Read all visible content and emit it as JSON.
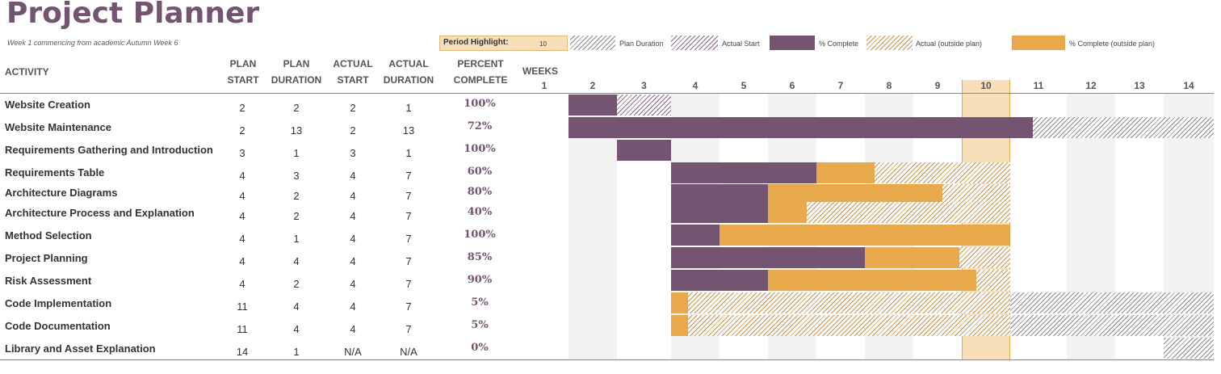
{
  "title": "Project Planner",
  "subtitle": "Week 1 commencing from academic Autumn Week 6",
  "period_highlight": {
    "label": "Period Highlight:",
    "value": "10"
  },
  "legend": [
    {
      "label": "Plan Duration",
      "style": "hatch-gray"
    },
    {
      "label": "Actual Start",
      "style": "hatch-purple"
    },
    {
      "label": "% Complete",
      "style": "solid-purple"
    },
    {
      "label": "Actual (outside plan)",
      "style": "hatch-orange"
    },
    {
      "label": "% Complete (outside plan)",
      "style": "solid-orange"
    }
  ],
  "headers": {
    "activity": "ACTIVITY",
    "plan_start": [
      "PLAN",
      "START"
    ],
    "plan_duration": [
      "PLAN",
      "DURATION"
    ],
    "actual_start": [
      "ACTUAL",
      "START"
    ],
    "actual_duration": [
      "ACTUAL",
      "DURATION"
    ],
    "percent_complete": [
      "PERCENT",
      "COMPLETE"
    ],
    "weeks": "WEEKS"
  },
  "weeks": [
    "1",
    "2",
    "3",
    "4",
    "5",
    "6",
    "7",
    "8",
    "9",
    "10",
    "11",
    "12",
    "13",
    "14"
  ],
  "highlight_week": 10,
  "colors": {
    "purple": "#735572",
    "orange": "#e8a94d",
    "highlight": "#f9deba"
  },
  "rows": [
    {
      "activity": "Website Creation",
      "plan_start": "2",
      "plan_duration": "2",
      "actual_start": "2",
      "actual_duration": "1",
      "percent": "100%",
      "pct_value": 100,
      "outside_plan": false
    },
    {
      "activity": "Website Maintenance",
      "plan_start": "2",
      "plan_duration": "13",
      "actual_start": "2",
      "actual_duration": "13",
      "percent": "72%",
      "pct_value": 72,
      "outside_plan": false
    },
    {
      "activity": "Requirements Gathering and Introduction",
      "plan_start": "3",
      "plan_duration": "1",
      "actual_start": "3",
      "actual_duration": "1",
      "percent": "100%",
      "pct_value": 100,
      "outside_plan": false
    },
    {
      "activity": "Requirements Table",
      "plan_start": "4",
      "plan_duration": "3",
      "actual_start": "4",
      "actual_duration": "7",
      "percent": "60%",
      "pct_value": 60,
      "outside_plan": false
    },
    {
      "activity": "Architecture Diagrams",
      "plan_start": "4",
      "plan_duration": "2",
      "actual_start": "4",
      "actual_duration": "7",
      "percent": "80%",
      "pct_value": 80,
      "outside_plan": false
    },
    {
      "activity": "Architecture Process and Explanation",
      "plan_start": "4",
      "plan_duration": "2",
      "actual_start": "4",
      "actual_duration": "7",
      "percent": "40%",
      "pct_value": 40,
      "outside_plan": false
    },
    {
      "activity": "Method Selection",
      "plan_start": "4",
      "plan_duration": "1",
      "actual_start": "4",
      "actual_duration": "7",
      "percent": "100%",
      "pct_value": 100,
      "outside_plan": false
    },
    {
      "activity": "Project Planning",
      "plan_start": "4",
      "plan_duration": "4",
      "actual_start": "4",
      "actual_duration": "7",
      "percent": "85%",
      "pct_value": 85,
      "outside_plan": false
    },
    {
      "activity": "Risk Assessment",
      "plan_start": "4",
      "plan_duration": "2",
      "actual_start": "4",
      "actual_duration": "7",
      "percent": "90%",
      "pct_value": 90,
      "outside_plan": false
    },
    {
      "activity": "Code Implementation",
      "plan_start": "11",
      "plan_duration": "4",
      "actual_start": "4",
      "actual_duration": "7",
      "percent": "5%",
      "pct_value": 5,
      "outside_plan": true
    },
    {
      "activity": "Code Documentation",
      "plan_start": "11",
      "plan_duration": "4",
      "actual_start": "4",
      "actual_duration": "7",
      "percent": "5%",
      "pct_value": 5,
      "outside_plan": true
    },
    {
      "activity": "Library and Asset Explanation",
      "plan_start": "14",
      "plan_duration": "1",
      "actual_start": "N/A",
      "actual_duration": "N/A",
      "percent": "0%",
      "pct_value": 0,
      "outside_plan": false
    }
  ]
}
